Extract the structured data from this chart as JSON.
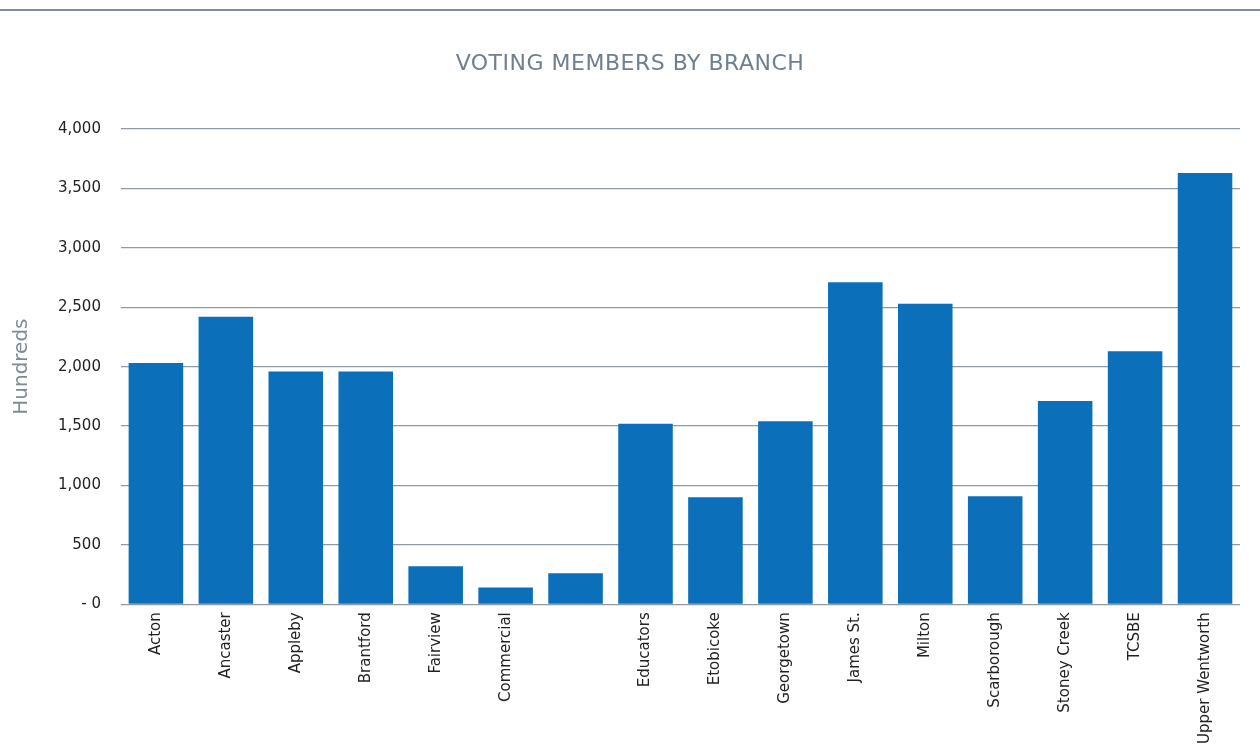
{
  "chart_data": {
    "type": "bar",
    "title": "VOTING MEMBERS BY BRANCH",
    "ylabel": "Hundreds",
    "categories": [
      "Acton",
      "Ancaster",
      "Appleby",
      "Brantford",
      "Fairview",
      "Commercial",
      null,
      "Educators",
      "Etobicoke",
      "Georgetown",
      "James St.",
      "Milton",
      "Scarborough",
      "Stoney Creek",
      "TCSBE",
      "Upper Wentworth"
    ],
    "values": [
      2030,
      2420,
      1960,
      1960,
      320,
      140,
      260,
      1520,
      900,
      1540,
      2710,
      2530,
      910,
      1710,
      2130,
      3630
    ],
    "color": "#0b70b9",
    "ylim": [
      0,
      4000
    ],
    "yticks": [
      {
        "value": 0,
        "label": "- 0"
      },
      {
        "value": 500,
        "label": "500"
      },
      {
        "value": 1000,
        "label": "1,000"
      },
      {
        "value": 1500,
        "label": "1,500"
      },
      {
        "value": 2000,
        "label": "2,000"
      },
      {
        "value": 2500,
        "label": "2,500"
      },
      {
        "value": 3000,
        "label": "3,000"
      },
      {
        "value": 3500,
        "label": "3,500"
      },
      {
        "value": 4000,
        "label": "4,000"
      }
    ],
    "grid": "y",
    "legend": false
  }
}
